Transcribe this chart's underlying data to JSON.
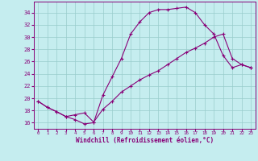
{
  "xlabel": "Windchill (Refroidissement éolien,°C)",
  "bg_color": "#c5edef",
  "line_color": "#880077",
  "grid_color": "#99cccc",
  "x_ticks": [
    0,
    1,
    2,
    3,
    4,
    5,
    6,
    7,
    8,
    9,
    10,
    11,
    12,
    13,
    14,
    15,
    16,
    17,
    18,
    19,
    20,
    21,
    22,
    23
  ],
  "y_ticks": [
    16,
    18,
    20,
    22,
    24,
    26,
    28,
    30,
    32,
    34
  ],
  "xlim": [
    -0.5,
    23.5
  ],
  "ylim": [
    15.0,
    35.8
  ],
  "line1_x": [
    0,
    1,
    2,
    3,
    4,
    5,
    6,
    7,
    8,
    9,
    10,
    11,
    12,
    13,
    14,
    15,
    16,
    17,
    18,
    19,
    20,
    21,
    22,
    23
  ],
  "line1_y": [
    19.5,
    18.5,
    17.8,
    17.0,
    16.5,
    15.8,
    16.0,
    20.5,
    23.5,
    26.5,
    30.5,
    32.5,
    34.0,
    34.5,
    34.5,
    34.7,
    34.9,
    34.0,
    32.0,
    30.5,
    27.0,
    25.0,
    25.5,
    25.0
  ],
  "line2_x": [
    0,
    1,
    2,
    3,
    4,
    5,
    6,
    7,
    8,
    9,
    10,
    11,
    12,
    13,
    14,
    15,
    16,
    17,
    18,
    19,
    20,
    21,
    22,
    23
  ],
  "line2_y": [
    19.5,
    18.5,
    17.8,
    17.0,
    17.3,
    17.6,
    16.1,
    18.2,
    19.5,
    21.0,
    22.0,
    23.0,
    23.8,
    24.5,
    25.5,
    26.5,
    27.5,
    28.2,
    29.0,
    30.0,
    30.5,
    26.5,
    25.5,
    25.0
  ]
}
